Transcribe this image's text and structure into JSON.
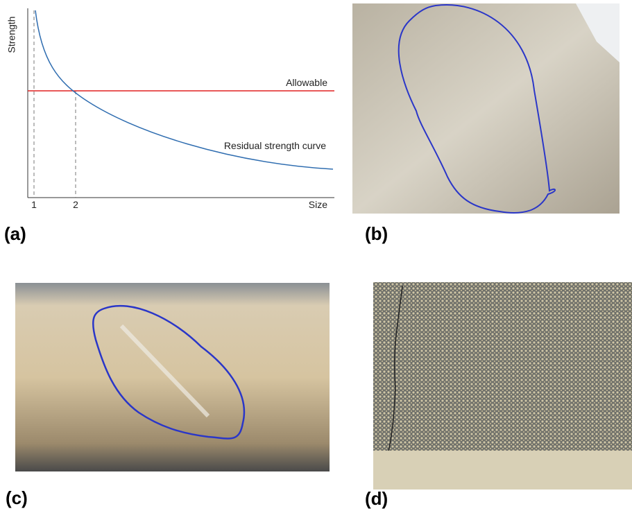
{
  "panels": [
    {
      "label": "(a)",
      "chart": {
        "y_label": "Strength",
        "x_label": "Size",
        "xticks": [
          "1",
          "2"
        ],
        "lines": [
          {
            "name": "Allowable",
            "color": "#e02020"
          },
          {
            "name": "Residual strength curve",
            "color": "#2f6db0"
          }
        ]
      }
    },
    {
      "label": "(b)"
    },
    {
      "label": "(c)"
    },
    {
      "label": "(d)"
    }
  ]
}
